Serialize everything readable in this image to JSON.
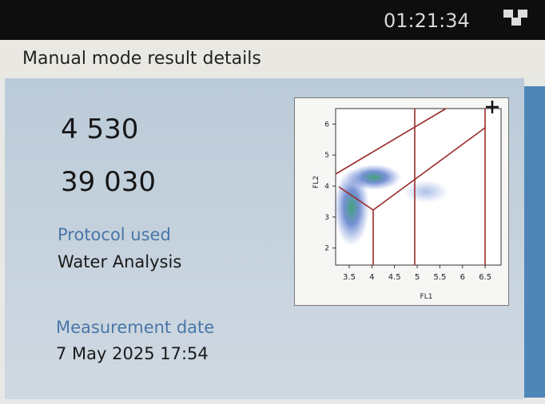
{
  "status_bar": {
    "time": "01:21:34"
  },
  "header": {
    "title": "Manual mode result details"
  },
  "results": {
    "count_1": "4 530",
    "count_2": "39 030"
  },
  "protocol": {
    "label": "Protocol used",
    "value": "Water Analysis"
  },
  "measurement": {
    "label": "Measurement date",
    "value": "7 May 2025 17:54"
  },
  "plot": {
    "type": "scatter",
    "xlabel": "FL1",
    "ylabel": "FL2",
    "xlim": [
      3.2,
      6.85
    ],
    "xticks": [
      3.5,
      4,
      4.5,
      5,
      5.5,
      6,
      6.5
    ],
    "ylim": [
      1.45,
      6.5
    ],
    "yticks": [
      2,
      3,
      4,
      5,
      6
    ]
  }
}
